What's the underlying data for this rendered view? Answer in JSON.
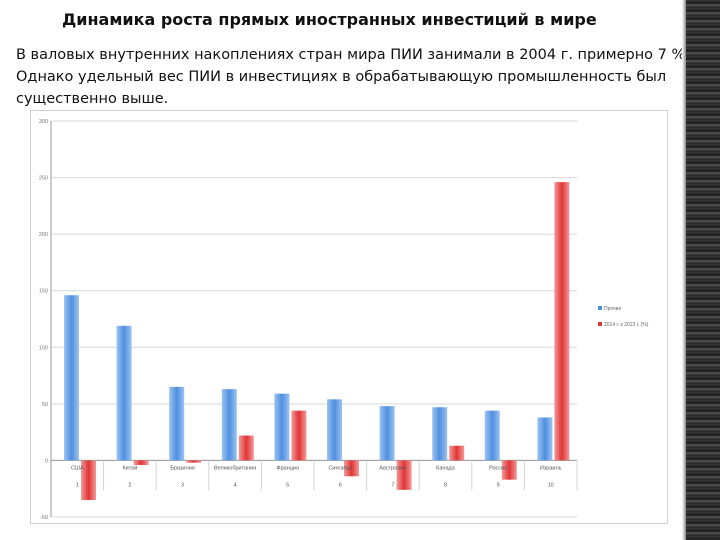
{
  "slide": {
    "title": "Динамика роста прямых иностранных инвестиций в мире",
    "body": "В валовых внутренних накоплениях стран мира ПИИ занимали в 2004 г. примерно 7 %. Однако удельный вес ПИИ в инвестициях в обрабатывающую промышленность был существенно выше."
  },
  "colors": {
    "series1": "#4f8fdf",
    "series2": "#e03535"
  },
  "chart_data": {
    "type": "bar",
    "title": "",
    "xlabel": "",
    "ylabel": "",
    "ylim": [
      -50,
      300
    ],
    "yticks": [
      "-50",
      "0",
      "50",
      "100",
      "150",
      "200",
      "250",
      "300"
    ],
    "grid": true,
    "legend_position": "right",
    "categories": [
      "США",
      "Китай",
      "Бразилия",
      "Великобритания",
      "Франция",
      "Сингапур",
      "Австралия",
      "Канада",
      "Россия",
      "Израиль"
    ],
    "index_labels": [
      "1",
      "2",
      "3",
      "4",
      "5",
      "6",
      "7",
      "8",
      "9",
      "10"
    ],
    "series": [
      {
        "name": "Прочие",
        "values": [
          146,
          119,
          65,
          63,
          59,
          54,
          48,
          47,
          44,
          38
        ]
      },
      {
        "name": "2014 г. к 2013 г. (%)",
        "values": [
          -35,
          -4,
          -2,
          22,
          44,
          -14,
          -26,
          13,
          -17,
          246
        ]
      }
    ]
  }
}
